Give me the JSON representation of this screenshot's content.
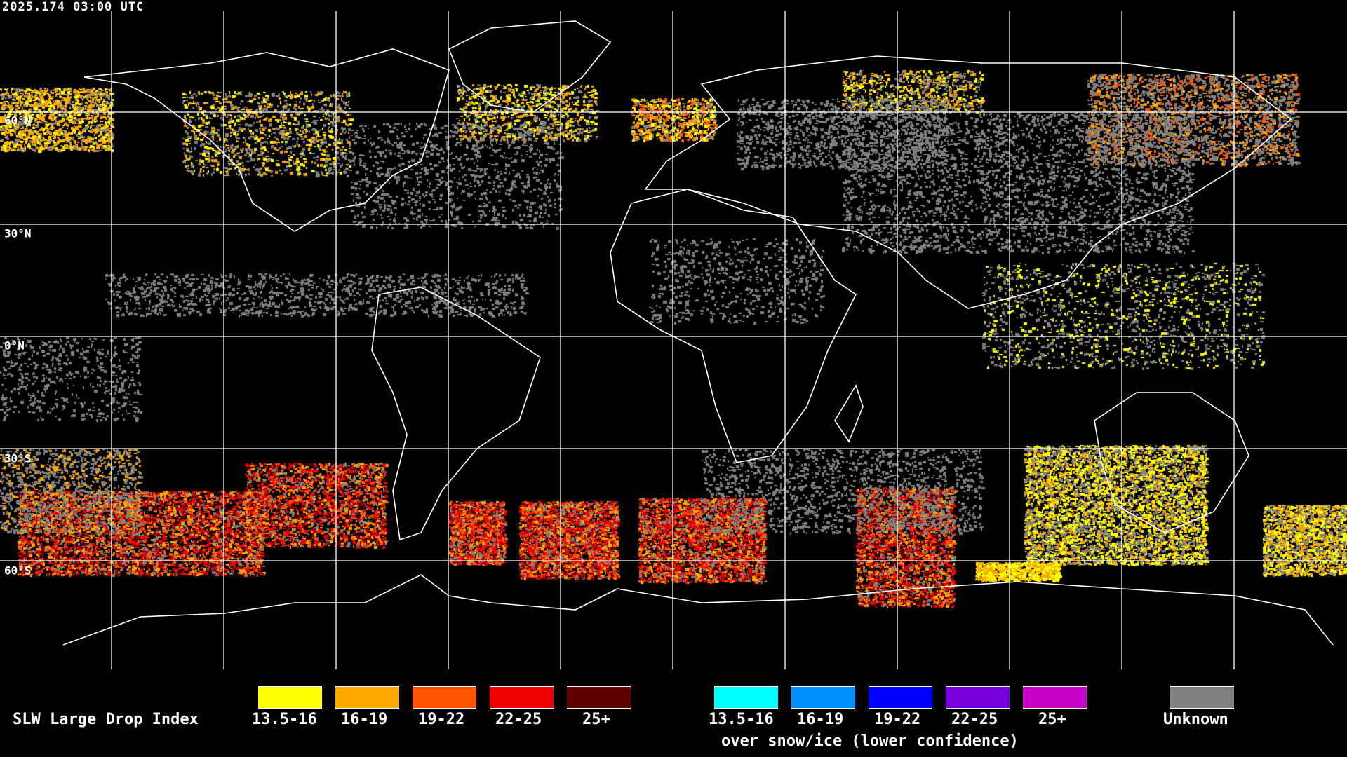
{
  "timestamp": "2025.174 03:00 UTC",
  "latitude_labels": [
    "60°N",
    "30°N",
    "0°N",
    "30°S",
    "60°S"
  ],
  "legend": {
    "title": "SLW Large Drop Index",
    "categories": [
      {
        "label": "13.5-16",
        "color": "#ffff00"
      },
      {
        "label": "16-19",
        "color": "#ffa800"
      },
      {
        "label": "19-22",
        "color": "#ff5400"
      },
      {
        "label": "22-25",
        "color": "#f00000"
      },
      {
        "label": "25+",
        "color": "#600000"
      }
    ],
    "snow_ice_categories": [
      {
        "label": "13.5-16",
        "color": "#00ffff"
      },
      {
        "label": "16-19",
        "color": "#0090ff"
      },
      {
        "label": "19-22",
        "color": "#0000ff"
      },
      {
        "label": "22-25",
        "color": "#7800dc"
      },
      {
        "label": "25+",
        "color": "#c800c8"
      }
    ],
    "snow_ice_caption": "over snow/ice (lower confidence)",
    "unknown": {
      "label": "Unknown",
      "color": "#808080"
    }
  }
}
